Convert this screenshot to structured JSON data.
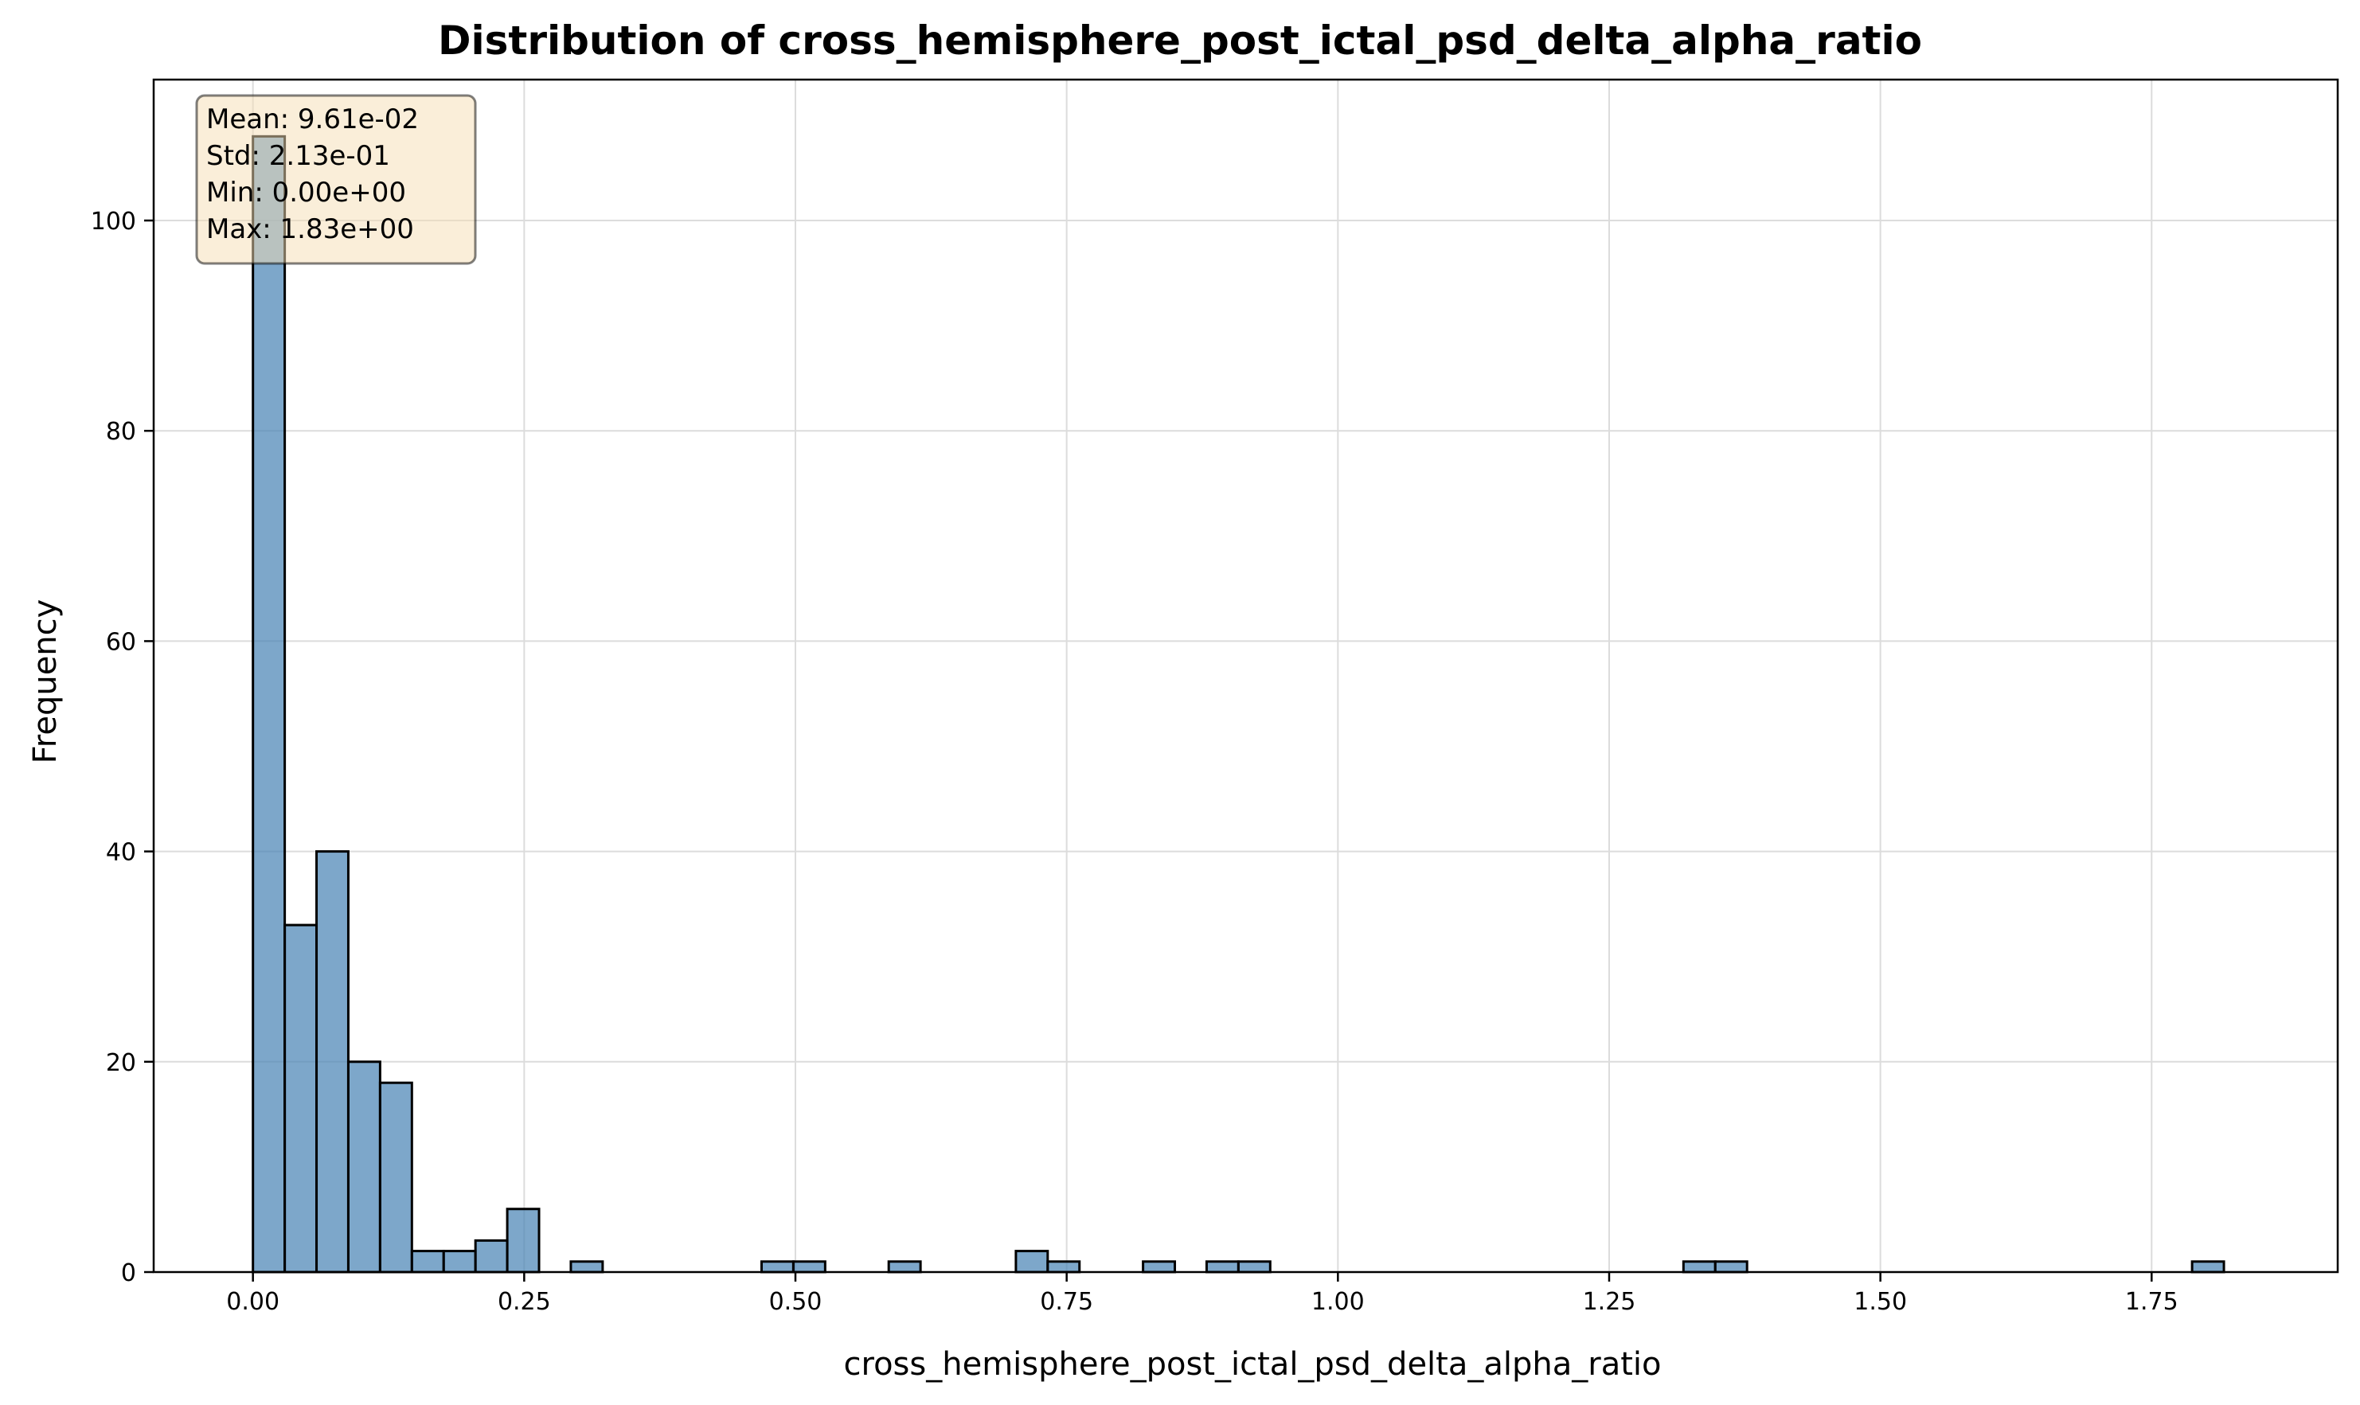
{
  "chart_data": {
    "type": "bar",
    "subtype": "histogram",
    "title": "Distribution of cross_hemisphere_post_ictal_psd_delta_alpha_ratio",
    "xlabel": "cross_hemisphere_post_ictal_psd_delta_alpha_ratio",
    "ylabel": "Frequency",
    "xlim": [
      -0.0915,
      1.9215
    ],
    "ylim": [
      0,
      113.4
    ],
    "x_ticks": [
      0.0,
      0.25,
      0.5,
      0.75,
      1.0,
      1.25,
      1.5,
      1.75
    ],
    "x_tick_labels": [
      "0.00",
      "0.25",
      "0.50",
      "0.75",
      "1.00",
      "1.25",
      "1.50",
      "1.75"
    ],
    "y_ticks": [
      0,
      20,
      40,
      60,
      80,
      100
    ],
    "y_tick_labels": [
      "0",
      "20",
      "40",
      "60",
      "80",
      "100"
    ],
    "grid": true,
    "bar_color": "#4682b4",
    "bar_edge_color": "#000000",
    "bin_start": 0.0,
    "bin_width": 0.0293,
    "counts": [
      108,
      33,
      40,
      20,
      18,
      2,
      2,
      3,
      6,
      0,
      1,
      0,
      0,
      0,
      0,
      0,
      1,
      1,
      0,
      0,
      1,
      0,
      0,
      0,
      2,
      1,
      0,
      0,
      1,
      0,
      1,
      1,
      0,
      0,
      0,
      0,
      0,
      0,
      0,
      0,
      0,
      0,
      0,
      0,
      0,
      1,
      1,
      0,
      0,
      0,
      0,
      0,
      0,
      0,
      0,
      0,
      0,
      0,
      0,
      0,
      0,
      1
    ],
    "stats_box": {
      "lines": [
        "Mean: 9.61e-02",
        "Std: 2.13e-01",
        "Min: 0.00e+00",
        "Max: 1.83e+00"
      ],
      "background": "#f5deb3",
      "edge_color": "#000000"
    }
  }
}
